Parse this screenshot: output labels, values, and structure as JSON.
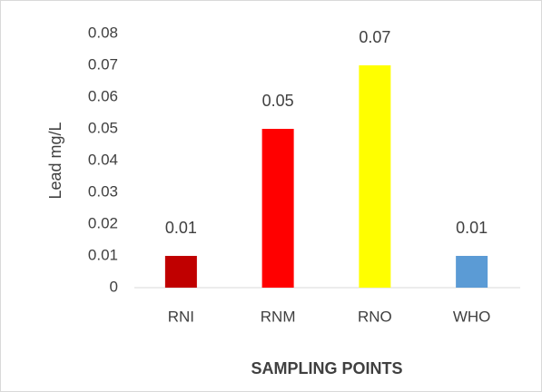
{
  "chart_data": {
    "type": "bar",
    "categories": [
      "RNI",
      "RNM",
      "RNO",
      "WHO"
    ],
    "values": [
      0.01,
      0.05,
      0.07,
      0.01
    ],
    "colors": [
      "#c00000",
      "#ff0000",
      "#ffff00",
      "#5b9bd5"
    ],
    "ylim": [
      0,
      0.08
    ],
    "yticks": [
      0,
      0.01,
      0.02,
      0.03,
      0.04,
      0.05,
      0.06,
      0.07,
      0.08
    ],
    "x_label": "SAMPLING POINTS",
    "y_label": "Lead mg/L",
    "grid": false
  }
}
